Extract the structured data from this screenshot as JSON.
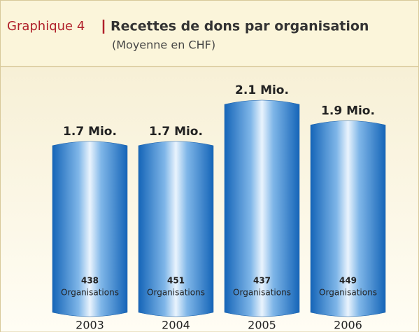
{
  "chart_data": {
    "type": "bar",
    "title_prefix": "Graphique 4",
    "title": "Recettes de dons par organisation",
    "subtitle": "(Moyenne en CHF)",
    "categories": [
      "2003",
      "2004",
      "2005",
      "2006"
    ],
    "values": [
      1.7,
      1.7,
      2.1,
      1.9
    ],
    "value_labels": [
      "1.7 Mio.",
      "1.7 Mio.",
      "2.1 Mio.",
      "1.9 Mio."
    ],
    "counts": [
      438,
      451,
      437,
      449
    ],
    "count_unit": "Organisations",
    "color": "#1f73c4"
  }
}
